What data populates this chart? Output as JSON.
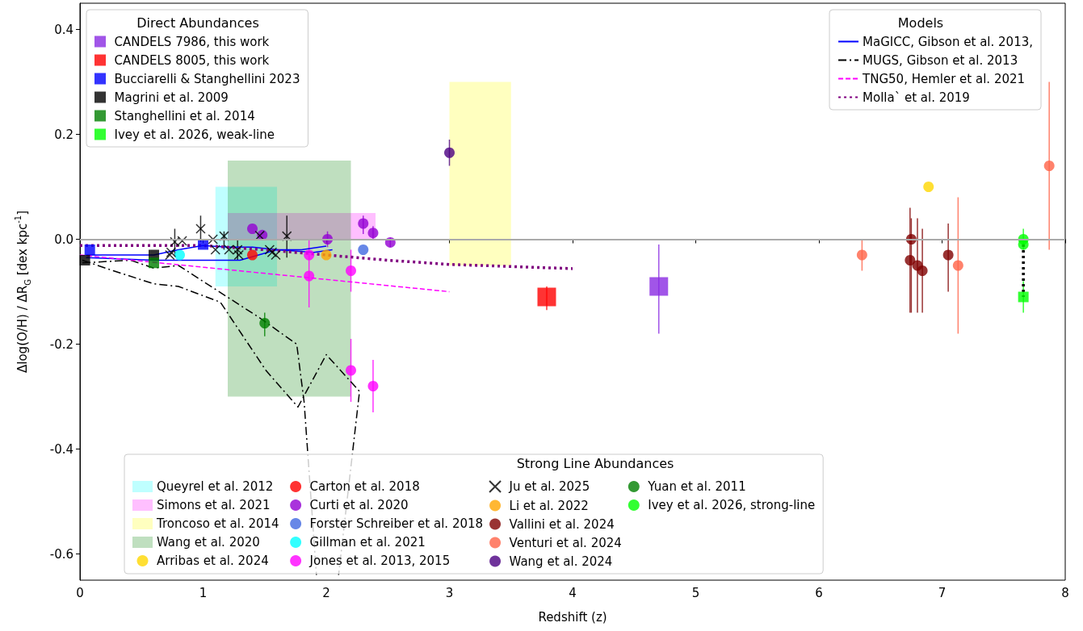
{
  "chart_data": {
    "type": "scatter",
    "xlabel": "Redshift (z)",
    "ylabel": "Δlog(O/H) / ΔR$_{G}$ [dex kpc$^{-1}$]",
    "xlim": [
      0,
      8
    ],
    "xticks": [
      0,
      1,
      2,
      3,
      4,
      5,
      6,
      7,
      8
    ],
    "ylim": [
      -0.65,
      0.45
    ],
    "yticks": [
      {
        "value": -0.6,
        "label": "-0.6"
      },
      {
        "value": -0.4,
        "label": "-0.4"
      },
      {
        "value": -0.2,
        "label": "-0.2"
      },
      {
        "value": 0,
        "label": "0.0"
      },
      {
        "value": 0.2,
        "label": "0.2"
      },
      {
        "value": 0.4,
        "label": "0.4"
      }
    ],
    "grid": false,
    "legend": [
      "top left",
      "top right",
      "bottom"
    ],
    "legend_title": [
      "Direct Abundances",
      "Models",
      "Strong Line Abundances"
    ],
    "ref_lines": [
      {
        "axis": "y",
        "value": 0,
        "label": null,
        "color": "#aaaaaa"
      }
    ],
    "series": [
      {
        "name": "Queyrel et al. 2012",
        "type": "line",
        "color": "#00ffff",
        "x": [
          1.1,
          1.6
        ],
        "values": [
          null,
          null
        ],
        "lower": [
          -0.09,
          -0.09
        ],
        "upper": [
          0.1,
          0.1
        ]
      },
      {
        "name": "Simons et al. 2021",
        "type": "line",
        "color": "#ff00ff",
        "x": [
          1.2,
          2.4
        ],
        "values": [
          null,
          null
        ],
        "lower": [
          0,
          0
        ],
        "upper": [
          0.05,
          0.05
        ]
      },
      {
        "name": "Troncoso et al. 2014",
        "type": "line",
        "color": "#ffff00",
        "x": [
          3.0,
          3.5
        ],
        "values": [
          null,
          null
        ],
        "lower": [
          -0.05,
          -0.05
        ],
        "upper": [
          0.3,
          0.3
        ]
      },
      {
        "name": "Wang et al. 2020",
        "type": "line",
        "color": "#008000",
        "x": [
          1.2,
          2.2
        ],
        "values": [
          null,
          null
        ],
        "lower": [
          -0.3,
          -0.3
        ],
        "upper": [
          0.15,
          0.15
        ]
      },
      {
        "name": "CANDELS 7986, this work",
        "marker": "square",
        "color": "#8a2be2",
        "x": [
          4.7
        ],
        "values": [
          -0.09
        ],
        "errors": [
          [
            -0.18,
            -0.01
          ]
        ]
      },
      {
        "name": "CANDELS 8005, this work",
        "marker": "square",
        "color": "#ff0000",
        "x": [
          3.79
        ],
        "values": [
          -0.11
        ],
        "errors": [
          [
            -0.135,
            -0.09
          ]
        ]
      },
      {
        "name": "Bucciarelli & Stanghellini 2023",
        "marker": "square",
        "color": "#0000ff",
        "x": [
          0.08,
          1.0
        ],
        "values": [
          -0.02,
          -0.01
        ]
      },
      {
        "name": "Magrini et al. 2009",
        "marker": "square",
        "color": "#000000",
        "x": [
          0.04,
          0.6
        ],
        "values": [
          -0.04,
          -0.03
        ]
      },
      {
        "name": "Stanghellini et al. 2014",
        "marker": "square",
        "color": "#008000",
        "x": [
          0.6
        ],
        "values": [
          -0.045
        ]
      },
      {
        "name": "Ivey et al. 2026, weak-line",
        "marker": "square",
        "color": "#00ff00",
        "x": [
          7.66
        ],
        "values": [
          -0.11
        ],
        "errors": [
          [
            -0.14,
            -0.08
          ]
        ]
      },
      {
        "name": "MaGICC, Gibson et al. 2013,",
        "type": "line",
        "marker": "none",
        "line_style": "solid",
        "color": "#0000ff",
        "x": [
          0.05,
          0.6,
          0.8,
          1.0,
          1.2,
          1.4,
          1.6,
          1.8,
          2.0
        ],
        "values": [
          -0.03,
          -0.03,
          -0.02,
          -0.012,
          -0.015,
          -0.015,
          -0.02,
          -0.02,
          -0.013
        ]
      },
      {
        "type": "line",
        "marker": "none",
        "line_style": "solid",
        "color": "#0000ff",
        "x": [
          0.05,
          0.6,
          1.0,
          1.3,
          1.45,
          1.6,
          1.9,
          2.05
        ],
        "values": [
          -0.035,
          -0.04,
          -0.04,
          -0.04,
          -0.03,
          -0.02,
          -0.025,
          -0.02
        ]
      },
      {
        "name": "MUGS, Gibson et al. 2013",
        "type": "line",
        "marker": "none",
        "line_style": "dashdot",
        "color": "#000000",
        "x": [
          0.02,
          0.27,
          0.6,
          0.8,
          1.14,
          1.51,
          1.77,
          2.0,
          2.27,
          2.1
        ],
        "values": [
          -0.04,
          -0.06,
          -0.085,
          -0.09,
          -0.12,
          -0.25,
          -0.32,
          -0.22,
          -0.29,
          -0.64
        ]
      },
      {
        "type": "line",
        "marker": "none",
        "line_style": "dashdot",
        "color": "#000000",
        "x": [
          0.02,
          0.41,
          0.6,
          0.8,
          1.46,
          1.76,
          1.82,
          1.92
        ],
        "values": [
          -0.045,
          -0.04,
          -0.055,
          -0.05,
          -0.15,
          -0.2,
          -0.31,
          -0.64
        ]
      },
      {
        "name": "TNG50, Hemler et al. 2021",
        "type": "line",
        "marker": "none",
        "line_style": "dashed",
        "color": "#ff00ff",
        "x": [
          0,
          3
        ],
        "values": [
          -0.03,
          -0.1
        ]
      },
      {
        "name": "Molla` et al. 2019",
        "type": "line",
        "marker": "none",
        "line_style": "dotted",
        "color": "#800080",
        "x": [
          0,
          1,
          1.5,
          2,
          2.5,
          3,
          4
        ],
        "values": [
          -0.012,
          -0.012,
          -0.02,
          -0.03,
          -0.04,
          -0.048,
          -0.056
        ]
      },
      {
        "name": "Arribas et al. 2024",
        "marker": "circle",
        "color": "#ffd700",
        "x": [
          6.89
        ],
        "values": [
          0.1
        ]
      },
      {
        "name": "Carton et al. 2018",
        "marker": "circle",
        "color": "#ff0000",
        "x": [
          1.4
        ],
        "values": [
          -0.03
        ]
      },
      {
        "name": "Curti et al. 2020",
        "marker": "circle",
        "color": "#9400d3",
        "x": [
          1.4,
          1.48,
          2.01,
          2.3,
          2.38,
          2.52
        ],
        "values": [
          0.02,
          0.008,
          0.0,
          0.03,
          0.012,
          -0.006
        ],
        "errors": [
          null,
          null,
          [
            -0.015,
            0.015
          ],
          [
            0.01,
            0.045
          ],
          [
            0.0,
            0.025
          ],
          [
            -0.015,
            0.003
          ]
        ]
      },
      {
        "name": "Forster Schreiber et al. 2018",
        "marker": "circle",
        "color": "#4169e1",
        "x": [
          2.3
        ],
        "values": [
          -0.02
        ]
      },
      {
        "name": "Gillman et al. 2021",
        "marker": "circle",
        "color": "#00ffff",
        "x": [
          0.81
        ],
        "values": [
          -0.03
        ]
      },
      {
        "name": "Jones et al. 2013, 2015",
        "marker": "circle",
        "color": "#ff00ff",
        "x": [
          1.86,
          1.86,
          2.2,
          2.2,
          2.38
        ],
        "values": [
          -0.03,
          -0.07,
          -0.06,
          -0.25,
          -0.28
        ],
        "errors": [
          null,
          [
            -0.13,
            0.0
          ],
          [
            -0.1,
            -0.02
          ],
          [
            -0.31,
            -0.19
          ],
          [
            -0.33,
            -0.23
          ]
        ]
      },
      {
        "name": "Ju et al. 2025",
        "marker": "cross",
        "color": "#000000",
        "x": [
          0.73,
          0.74,
          0.77,
          0.83,
          0.98,
          1.08,
          1.1,
          1.17,
          1.21,
          1.28,
          1.29,
          1.46,
          1.54,
          1.56,
          1.59,
          1.68
        ],
        "values": [
          -0.03,
          -0.025,
          -0.005,
          -0.003,
          0.02,
          0.0,
          -0.02,
          0.006,
          -0.02,
          -0.02,
          -0.03,
          0.007,
          -0.02,
          -0.025,
          -0.03,
          0.006
        ],
        "errors": [
          null,
          null,
          [
            -0.03,
            0.02
          ],
          null,
          [
            -0.005,
            0.045
          ],
          null,
          null,
          [
            -0.02,
            0.015
          ],
          null,
          [
            -0.04,
            0.0
          ],
          null,
          null,
          null,
          null,
          null,
          [
            -0.035,
            0.045
          ]
        ]
      },
      {
        "name": "Li et al. 2022",
        "marker": "circle",
        "color": "#ffa500",
        "x": [
          2.0
        ],
        "values": [
          -0.03
        ]
      },
      {
        "name": "Vallini et al. 2024",
        "marker": "circle",
        "color": "#800000",
        "x": [
          6.75,
          6.74,
          6.8,
          6.84,
          7.05
        ],
        "values": [
          0.0,
          -0.04,
          -0.05,
          -0.06,
          -0.03
        ],
        "errors": [
          [
            -0.14,
            0.04
          ],
          [
            -0.14,
            0.06
          ],
          [
            -0.14,
            0.04
          ],
          [
            -0.14,
            0.02
          ],
          [
            -0.1,
            0.03
          ]
        ]
      },
      {
        "name": "Venturi et al. 2024",
        "marker": "circle",
        "color": "#ff6347",
        "x": [
          6.35,
          7.13,
          7.87
        ],
        "values": [
          -0.03,
          -0.05,
          0.14
        ],
        "errors": [
          [
            -0.06,
            0.0
          ],
          [
            -0.18,
            0.08
          ],
          [
            -0.02,
            0.3
          ]
        ]
      },
      {
        "name": "Wang et al. 2024",
        "marker": "circle",
        "color": "#4b0082",
        "x": [
          3.0
        ],
        "values": [
          0.165
        ],
        "errors": [
          [
            0.14,
            0.19
          ]
        ]
      },
      {
        "name": "Yuan et al. 2011",
        "marker": "circle",
        "color": "#008000",
        "x": [
          1.5
        ],
        "values": [
          -0.16
        ],
        "errors": [
          [
            -0.185,
            -0.14
          ]
        ]
      },
      {
        "name": "Ivey et al. 2026, strong-line",
        "marker": "circle",
        "color": "#00ff00",
        "x": [
          7.66,
          7.66
        ],
        "values": [
          0.0,
          -0.01
        ],
        "errors": [
          [
            -0.02,
            0.02
          ],
          null
        ]
      },
      {
        "type": "line",
        "marker": "none",
        "line_style": "dotted",
        "color": "#000000",
        "x": [
          7.66,
          7.66
        ],
        "values": [
          -0.01,
          -0.11
        ]
      }
    ]
  }
}
